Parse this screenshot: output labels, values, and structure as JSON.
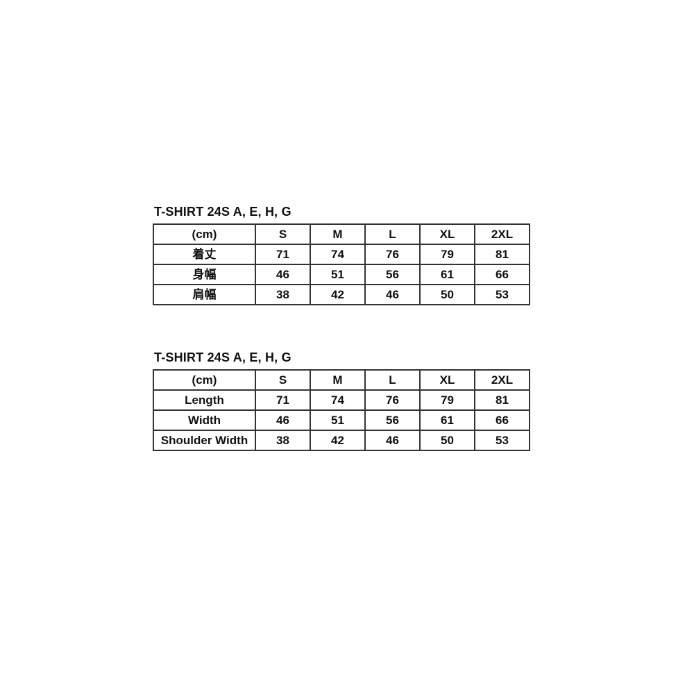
{
  "colors": {
    "background": "#ffffff",
    "text": "#111111",
    "border": "#333333"
  },
  "chart_data": [
    {
      "type": "table",
      "title": "T-SHIRT 24S A, E, H, G",
      "unit_header": "(cm)",
      "columns": [
        "S",
        "M",
        "L",
        "XL",
        "2XL"
      ],
      "rows": [
        {
          "label": "着丈",
          "values": [
            71,
            74,
            76,
            79,
            81
          ]
        },
        {
          "label": "身幅",
          "values": [
            46,
            51,
            56,
            61,
            66
          ]
        },
        {
          "label": "肩幅",
          "values": [
            38,
            42,
            46,
            50,
            53
          ]
        }
      ]
    },
    {
      "type": "table",
      "title": "T-SHIRT 24S A, E, H, G",
      "unit_header": "(cm)",
      "columns": [
        "S",
        "M",
        "L",
        "XL",
        "2XL"
      ],
      "rows": [
        {
          "label": "Length",
          "values": [
            71,
            74,
            76,
            79,
            81
          ]
        },
        {
          "label": "Width",
          "values": [
            46,
            51,
            56,
            61,
            66
          ]
        },
        {
          "label": "Shoulder Width",
          "values": [
            38,
            42,
            46,
            50,
            53
          ]
        }
      ]
    }
  ]
}
